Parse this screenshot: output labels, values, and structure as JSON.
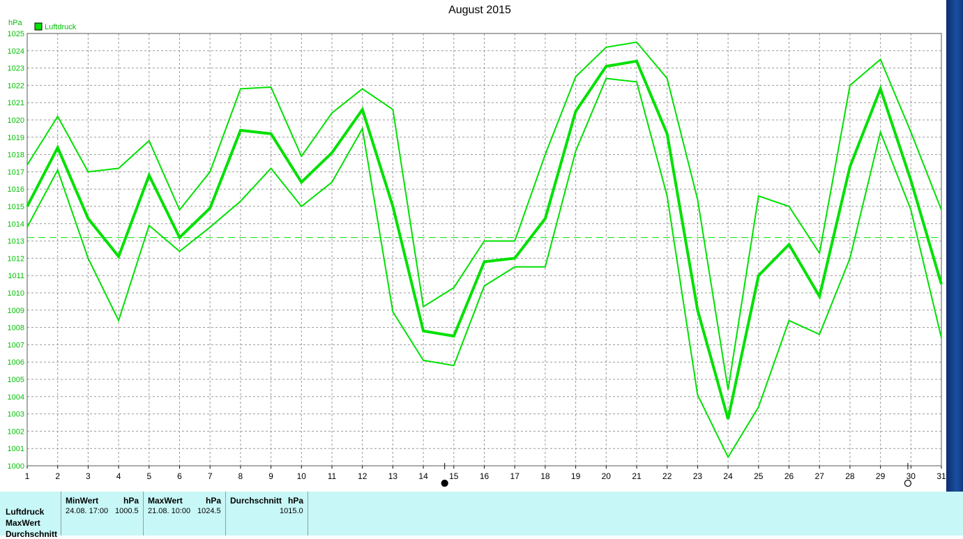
{
  "chart_data": {
    "type": "line",
    "title": "August 2015",
    "ylabel": "hPa",
    "xlabel": "",
    "ylim": [
      1000,
      1025
    ],
    "xlim": [
      1,
      31
    ],
    "x": [
      1,
      2,
      3,
      4,
      5,
      6,
      7,
      8,
      9,
      10,
      11,
      12,
      13,
      14,
      15,
      16,
      17,
      18,
      19,
      20,
      21,
      22,
      23,
      24,
      25,
      26,
      27,
      28,
      29,
      30,
      31
    ],
    "xticks": [
      "1",
      "2",
      "3",
      "4",
      "5",
      "6",
      "7",
      "8",
      "9",
      "10",
      "11",
      "12",
      "13",
      "14",
      "15",
      "16",
      "17",
      "18",
      "19",
      "20",
      "21",
      "22",
      "23",
      "24",
      "25",
      "26",
      "27",
      "28",
      "29",
      "30",
      "31"
    ],
    "yticks": [
      "1000",
      "1001",
      "1002",
      "1003",
      "1004",
      "1005",
      "1006",
      "1007",
      "1008",
      "1009",
      "1010",
      "1011",
      "1012",
      "1013",
      "1014",
      "1015",
      "1016",
      "1017",
      "1018",
      "1019",
      "1020",
      "1021",
      "1022",
      "1023",
      "1024",
      "1025"
    ],
    "grid": true,
    "legend": [
      {
        "label": "Luftdruck",
        "color": "#00e000"
      }
    ],
    "legend_position": "top-left",
    "color": "#00e000",
    "reference_line": 1013.2,
    "series": [
      {
        "name": "Luftdruck",
        "role": "average",
        "values": [
          1015.0,
          1018.4,
          1014.3,
          1012.1,
          1016.8,
          1013.2,
          1014.9,
          1019.4,
          1019.2,
          1016.4,
          1018.1,
          1020.6,
          1015.0,
          1007.8,
          1007.5,
          1011.8,
          1012.0,
          1014.3,
          1020.5,
          1023.1,
          1023.4,
          1019.2,
          1009.0,
          1002.7,
          1011.0,
          1012.8,
          1009.8,
          1017.3,
          1021.8,
          1016.5,
          1010.5
        ]
      },
      {
        "name": "",
        "role": "max",
        "values": [
          1017.4,
          1020.2,
          1017.0,
          1017.2,
          1018.8,
          1014.8,
          1017.0,
          1021.8,
          1021.9,
          1017.9,
          1020.4,
          1021.8,
          1020.6,
          1009.2,
          1010.3,
          1013.0,
          1013.0,
          1018.0,
          1022.5,
          1024.2,
          1024.5,
          1022.4,
          1015.4,
          1004.4,
          1015.6,
          1015.0,
          1012.3,
          1022.0,
          1023.5,
          1019.3,
          1014.8
        ]
      },
      {
        "name": "",
        "role": "min",
        "values": [
          1013.8,
          1017.1,
          1012.0,
          1008.4,
          1013.9,
          1012.4,
          1013.8,
          1015.3,
          1017.2,
          1015.0,
          1016.4,
          1019.5,
          1008.9,
          1006.1,
          1005.8,
          1010.4,
          1011.5,
          1011.5,
          1018.2,
          1022.4,
          1022.2,
          1015.6,
          1004.1,
          1000.5,
          1003.4,
          1008.4,
          1007.6,
          1012.0,
          1019.3,
          1014.8,
          1007.4
        ]
      }
    ],
    "moon_phases": [
      {
        "day": 14.7,
        "symbol": "new-moon"
      },
      {
        "day": 29.9,
        "symbol": "full-moon"
      }
    ]
  },
  "stats": {
    "row_labels": [
      "Luftdruck",
      "MaxWert",
      "Durchschnitt"
    ],
    "min": {
      "header": "MinWert",
      "unit": "hPa",
      "datetime": "24.08.  17:00",
      "value": "1000.5"
    },
    "max": {
      "header": "MaxWert",
      "unit": "hPa",
      "datetime": "21.08.  10:00",
      "value": "1024.5"
    },
    "avg": {
      "header": "Durchschnitt",
      "unit": "hPa",
      "value": "1015.0"
    }
  }
}
